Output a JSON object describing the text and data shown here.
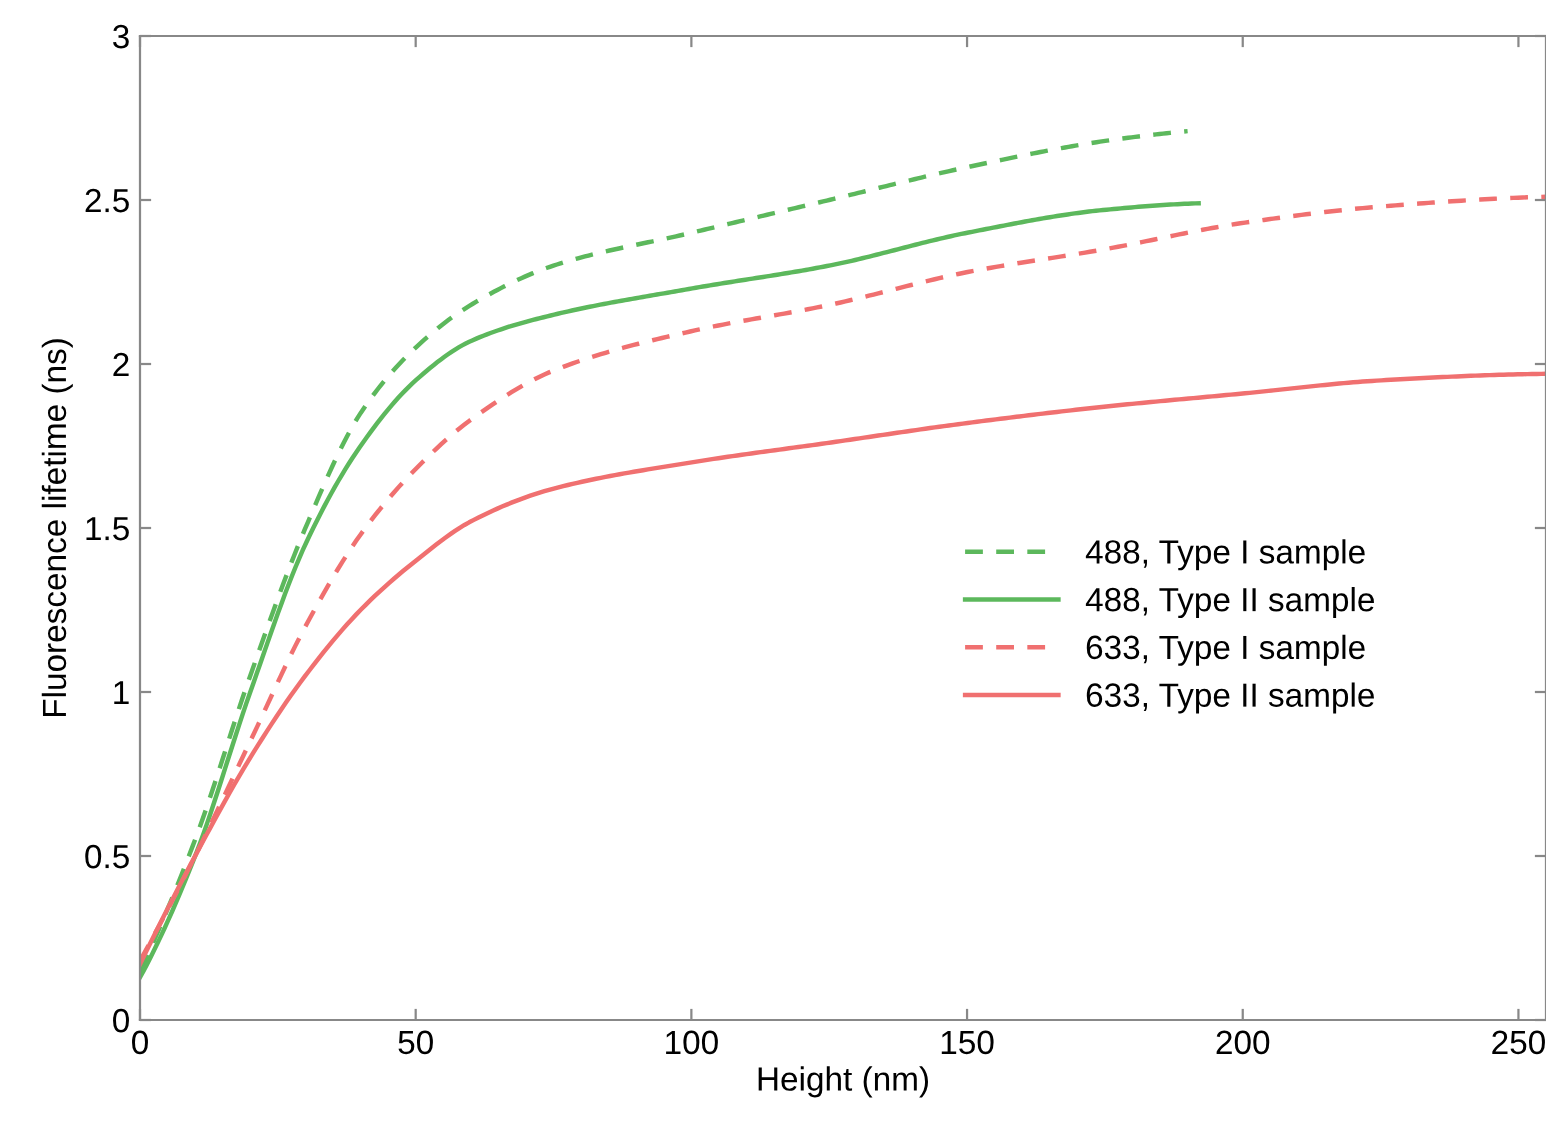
{
  "chart_data": {
    "type": "line",
    "xlabel": "Height (nm)",
    "ylabel": "Fluorescence lifetime (ns)",
    "xlim": [
      0,
      255
    ],
    "xticks": [
      0,
      50,
      100,
      150,
      200,
      250
    ],
    "ylim": [
      0,
      3
    ],
    "yticks": [
      0,
      0.5,
      1,
      1.5,
      2,
      2.5,
      3
    ],
    "grid": false,
    "legend": "right",
    "marker": "none",
    "series": [
      {
        "name": "488, Type I sample",
        "color": "#5cb85c",
        "line_style": "dashed",
        "x": [
          0,
          10,
          20,
          30,
          40,
          50,
          60,
          75,
          100,
          125,
          150,
          175,
          190
        ],
        "values": [
          0.15,
          0.55,
          1.05,
          1.5,
          1.85,
          2.05,
          2.18,
          2.3,
          2.4,
          2.5,
          2.6,
          2.68,
          2.71
        ]
      },
      {
        "name": "488, Type II sample",
        "color": "#5cb85c",
        "line_style": "solid",
        "x": [
          0,
          10,
          20,
          30,
          40,
          50,
          60,
          75,
          100,
          125,
          150,
          175,
          192
        ],
        "values": [
          0.13,
          0.5,
          1.0,
          1.45,
          1.75,
          1.95,
          2.07,
          2.15,
          2.23,
          2.3,
          2.4,
          2.47,
          2.49
        ]
      },
      {
        "name": "633, Type I sample",
        "color": "#f07070",
        "line_style": "dashed",
        "x": [
          0,
          10,
          20,
          30,
          40,
          50,
          60,
          75,
          100,
          125,
          150,
          175,
          200,
          225,
          255
        ],
        "values": [
          0.18,
          0.5,
          0.85,
          1.2,
          1.48,
          1.68,
          1.83,
          1.98,
          2.1,
          2.18,
          2.28,
          2.35,
          2.43,
          2.48,
          2.51
        ]
      },
      {
        "name": "633, Type II sample",
        "color": "#f07070",
        "line_style": "solid",
        "x": [
          0,
          10,
          20,
          30,
          40,
          50,
          60,
          75,
          100,
          125,
          150,
          175,
          200,
          225,
          255
        ],
        "values": [
          0.17,
          0.5,
          0.8,
          1.05,
          1.25,
          1.4,
          1.52,
          1.62,
          1.7,
          1.76,
          1.82,
          1.87,
          1.91,
          1.95,
          1.97
        ]
      }
    ]
  }
}
